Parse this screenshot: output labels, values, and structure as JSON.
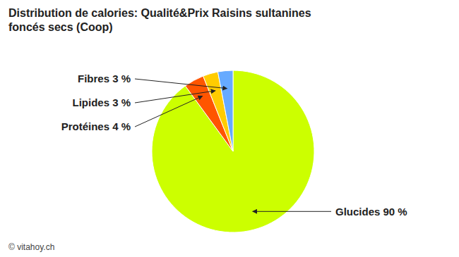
{
  "chart_data": {
    "type": "pie",
    "title": "Distribution de calories: Qualité&Prix Raisins sultanines\nfoncés secs (Coop)",
    "categories": [
      "Glucides 90 %",
      "Protéines 4 %",
      "Lipides 3 %",
      "Fibres 3 %"
    ],
    "values": [
      90,
      4,
      3,
      3
    ],
    "colors": [
      "#ccff00",
      "#ff5500",
      "#ffcc00",
      "#66aaff"
    ],
    "annotations": [
      "© vitahoy.ch"
    ]
  }
}
